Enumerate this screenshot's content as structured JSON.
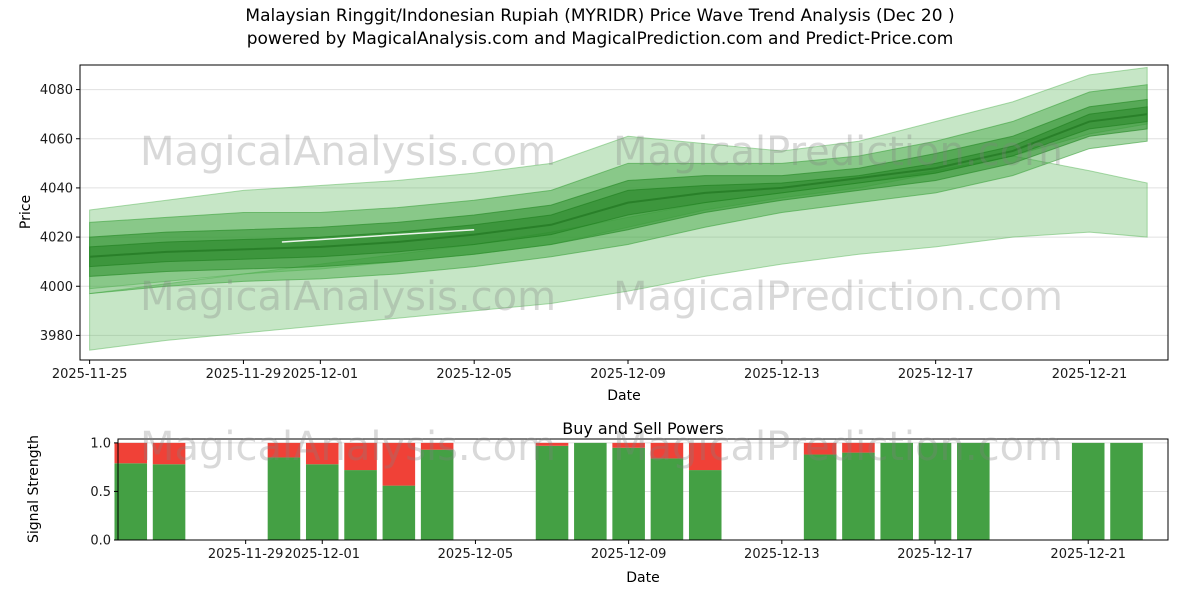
{
  "header": {
    "title_line1": "Malaysian Ringgit/Indonesian Rupiah (MYRIDR) Price Wave Trend Analysis (Dec 20 )",
    "title_line2": "powered by MagicalAnalysis.com and MagicalPrediction.com and Predict-Price.com"
  },
  "watermarks": {
    "analysis": "MagicalAnalysis.com",
    "prediction": "MagicalPrediction.com"
  },
  "chart_data": [
    {
      "type": "area",
      "title": "Malaysian Ringgit/Indonesian Rupiah (MYRIDR) Price Wave Trend Analysis (Dec 20 )",
      "subtitle": "powered by MagicalAnalysis.com and MagicalPrediction.com and Predict-Price.com",
      "xlabel": "Date",
      "ylabel": "Price",
      "ylim": [
        3970,
        4090
      ],
      "yticks": [
        3980,
        4000,
        4020,
        4040,
        4060,
        4080
      ],
      "xtick_labels": [
        "2025-11-25",
        "2025-11-29",
        "2025-12-01",
        "2025-12-05",
        "2025-12-09",
        "2025-12-13",
        "2025-12-17",
        "2025-12-21"
      ],
      "xlim_dates": [
        "2025-11-24T18:00:00",
        "2025-12-23T01:00:00"
      ],
      "grid": "y",
      "x_dates": [
        "2025-11-25",
        "2025-11-27",
        "2025-11-29",
        "2025-12-01",
        "2025-12-03",
        "2025-12-05",
        "2025-12-07",
        "2025-12-09",
        "2025-12-11",
        "2025-12-13",
        "2025-12-15",
        "2025-12-17",
        "2025-12-19",
        "2025-12-21",
        "2025-12-22T12:00:00"
      ],
      "bands": [
        {
          "name": "lower-envelope-band",
          "color": "#5cb85c",
          "opacity": 0.35,
          "lower": [
            3974,
            3978,
            3981,
            3984,
            3987,
            3990,
            3993,
            3998,
            4004,
            4009,
            4013,
            4016,
            4020,
            4022,
            4020
          ],
          "upper": [
            3997,
            4001,
            4005,
            4009,
            4013,
            4017,
            4022,
            4028,
            4034,
            4038,
            4042,
            4047,
            4053,
            4047,
            4042
          ]
        },
        {
          "name": "upper-envelope-band",
          "color": "#5cb85c",
          "opacity": 0.35,
          "lower": [
            3999,
            4002,
            4005,
            4007,
            4010,
            4013,
            4017,
            4024,
            4031,
            4036,
            4040,
            4046,
            4053,
            4062,
            4066
          ],
          "upper": [
            4031,
            4035,
            4039,
            4041,
            4043,
            4046,
            4050,
            4061,
            4058,
            4055,
            4059,
            4067,
            4075,
            4086,
            4089
          ]
        },
        {
          "name": "mid-band",
          "color": "#3fa33f",
          "opacity": 0.45,
          "lower": [
            3997,
            4000,
            4002,
            4003,
            4005,
            4008,
            4012,
            4017,
            4024,
            4030,
            4034,
            4038,
            4045,
            4056,
            4059
          ],
          "upper": [
            4026,
            4028,
            4030,
            4030,
            4032,
            4035,
            4039,
            4050,
            4050,
            4050,
            4053,
            4059,
            4067,
            4079,
            4082
          ]
        },
        {
          "name": "core-band",
          "color": "#2d8f2d",
          "opacity": 0.55,
          "lower": [
            4004,
            4006,
            4007,
            4008,
            4010,
            4013,
            4017,
            4023,
            4030,
            4035,
            4039,
            4043,
            4050,
            4061,
            4064
          ],
          "upper": [
            4020,
            4022,
            4023,
            4024,
            4026,
            4029,
            4033,
            4043,
            4045,
            4045,
            4048,
            4054,
            4061,
            4073,
            4076
          ]
        },
        {
          "name": "accent-band",
          "color": "#1e7e1e",
          "opacity": 0.45,
          "lower": [
            4008,
            4010,
            4011,
            4012,
            4014,
            4017,
            4021,
            4029,
            4034,
            4038,
            4042,
            4046,
            4053,
            4064,
            4067
          ],
          "upper": [
            4016,
            4018,
            4019,
            4020,
            4022,
            4025,
            4029,
            4039,
            4041,
            4042,
            4045,
            4050,
            4057,
            4070,
            4073
          ]
        }
      ],
      "lines": [
        {
          "name": "median-line",
          "color": "#267d26",
          "opacity": 0.85,
          "width": 2,
          "values": [
            4012,
            4014,
            4015,
            4016,
            4018,
            4021,
            4025,
            4034,
            4038,
            4040,
            4044,
            4048,
            4055,
            4067,
            4070
          ]
        },
        {
          "name": "white-trend-line",
          "color": "#ffffff",
          "opacity": 0.9,
          "width": 1.5,
          "x_dates": [
            "2025-11-30",
            "2025-12-02",
            "2025-12-05"
          ],
          "values": [
            4018,
            4020,
            4023
          ]
        }
      ]
    },
    {
      "type": "stacked_bar",
      "title": "Buy and Sell Powers",
      "xlabel": "Date",
      "ylabel": "Signal Strength",
      "ylim": [
        0,
        1.04
      ],
      "yticks": [
        0,
        0.5,
        1
      ],
      "xtick_labels": [
        "2025-11-29",
        "2025-12-01",
        "2025-12-05",
        "2025-12-09",
        "2025-12-13",
        "2025-12-17",
        "2025-12-21"
      ],
      "xlim_dates": [
        "2025-11-25T16:00:00",
        "2025-12-23T02:00:00"
      ],
      "grid": "y",
      "bar_width_days": 0.85,
      "categories": [
        "2025-11-26",
        "2025-11-27",
        "2025-11-30",
        "2025-12-01",
        "2025-12-02",
        "2025-12-03",
        "2025-12-04",
        "2025-12-07",
        "2025-12-08",
        "2025-12-09",
        "2025-12-10",
        "2025-12-11",
        "2025-12-14",
        "2025-12-15",
        "2025-12-16",
        "2025-12-17",
        "2025-12-18",
        "2025-12-21",
        "2025-12-22"
      ],
      "series": [
        {
          "name": "Buy Power",
          "color": "#44a044",
          "values": [
            0.79,
            0.78,
            0.85,
            0.78,
            0.72,
            0.56,
            0.93,
            0.97,
            1.0,
            0.95,
            0.84,
            0.72,
            0.88,
            0.9,
            1.0,
            1.0,
            1.0,
            1.0,
            1.0
          ]
        },
        {
          "name": "Sell Power",
          "color": "#f04137",
          "values": [
            0.21,
            0.22,
            0.15,
            0.22,
            0.28,
            0.44,
            0.07,
            0.03,
            0.0,
            0.05,
            0.16,
            0.28,
            0.12,
            0.1,
            0.0,
            0.0,
            0.0,
            0.0,
            0.0
          ]
        }
      ]
    }
  ]
}
